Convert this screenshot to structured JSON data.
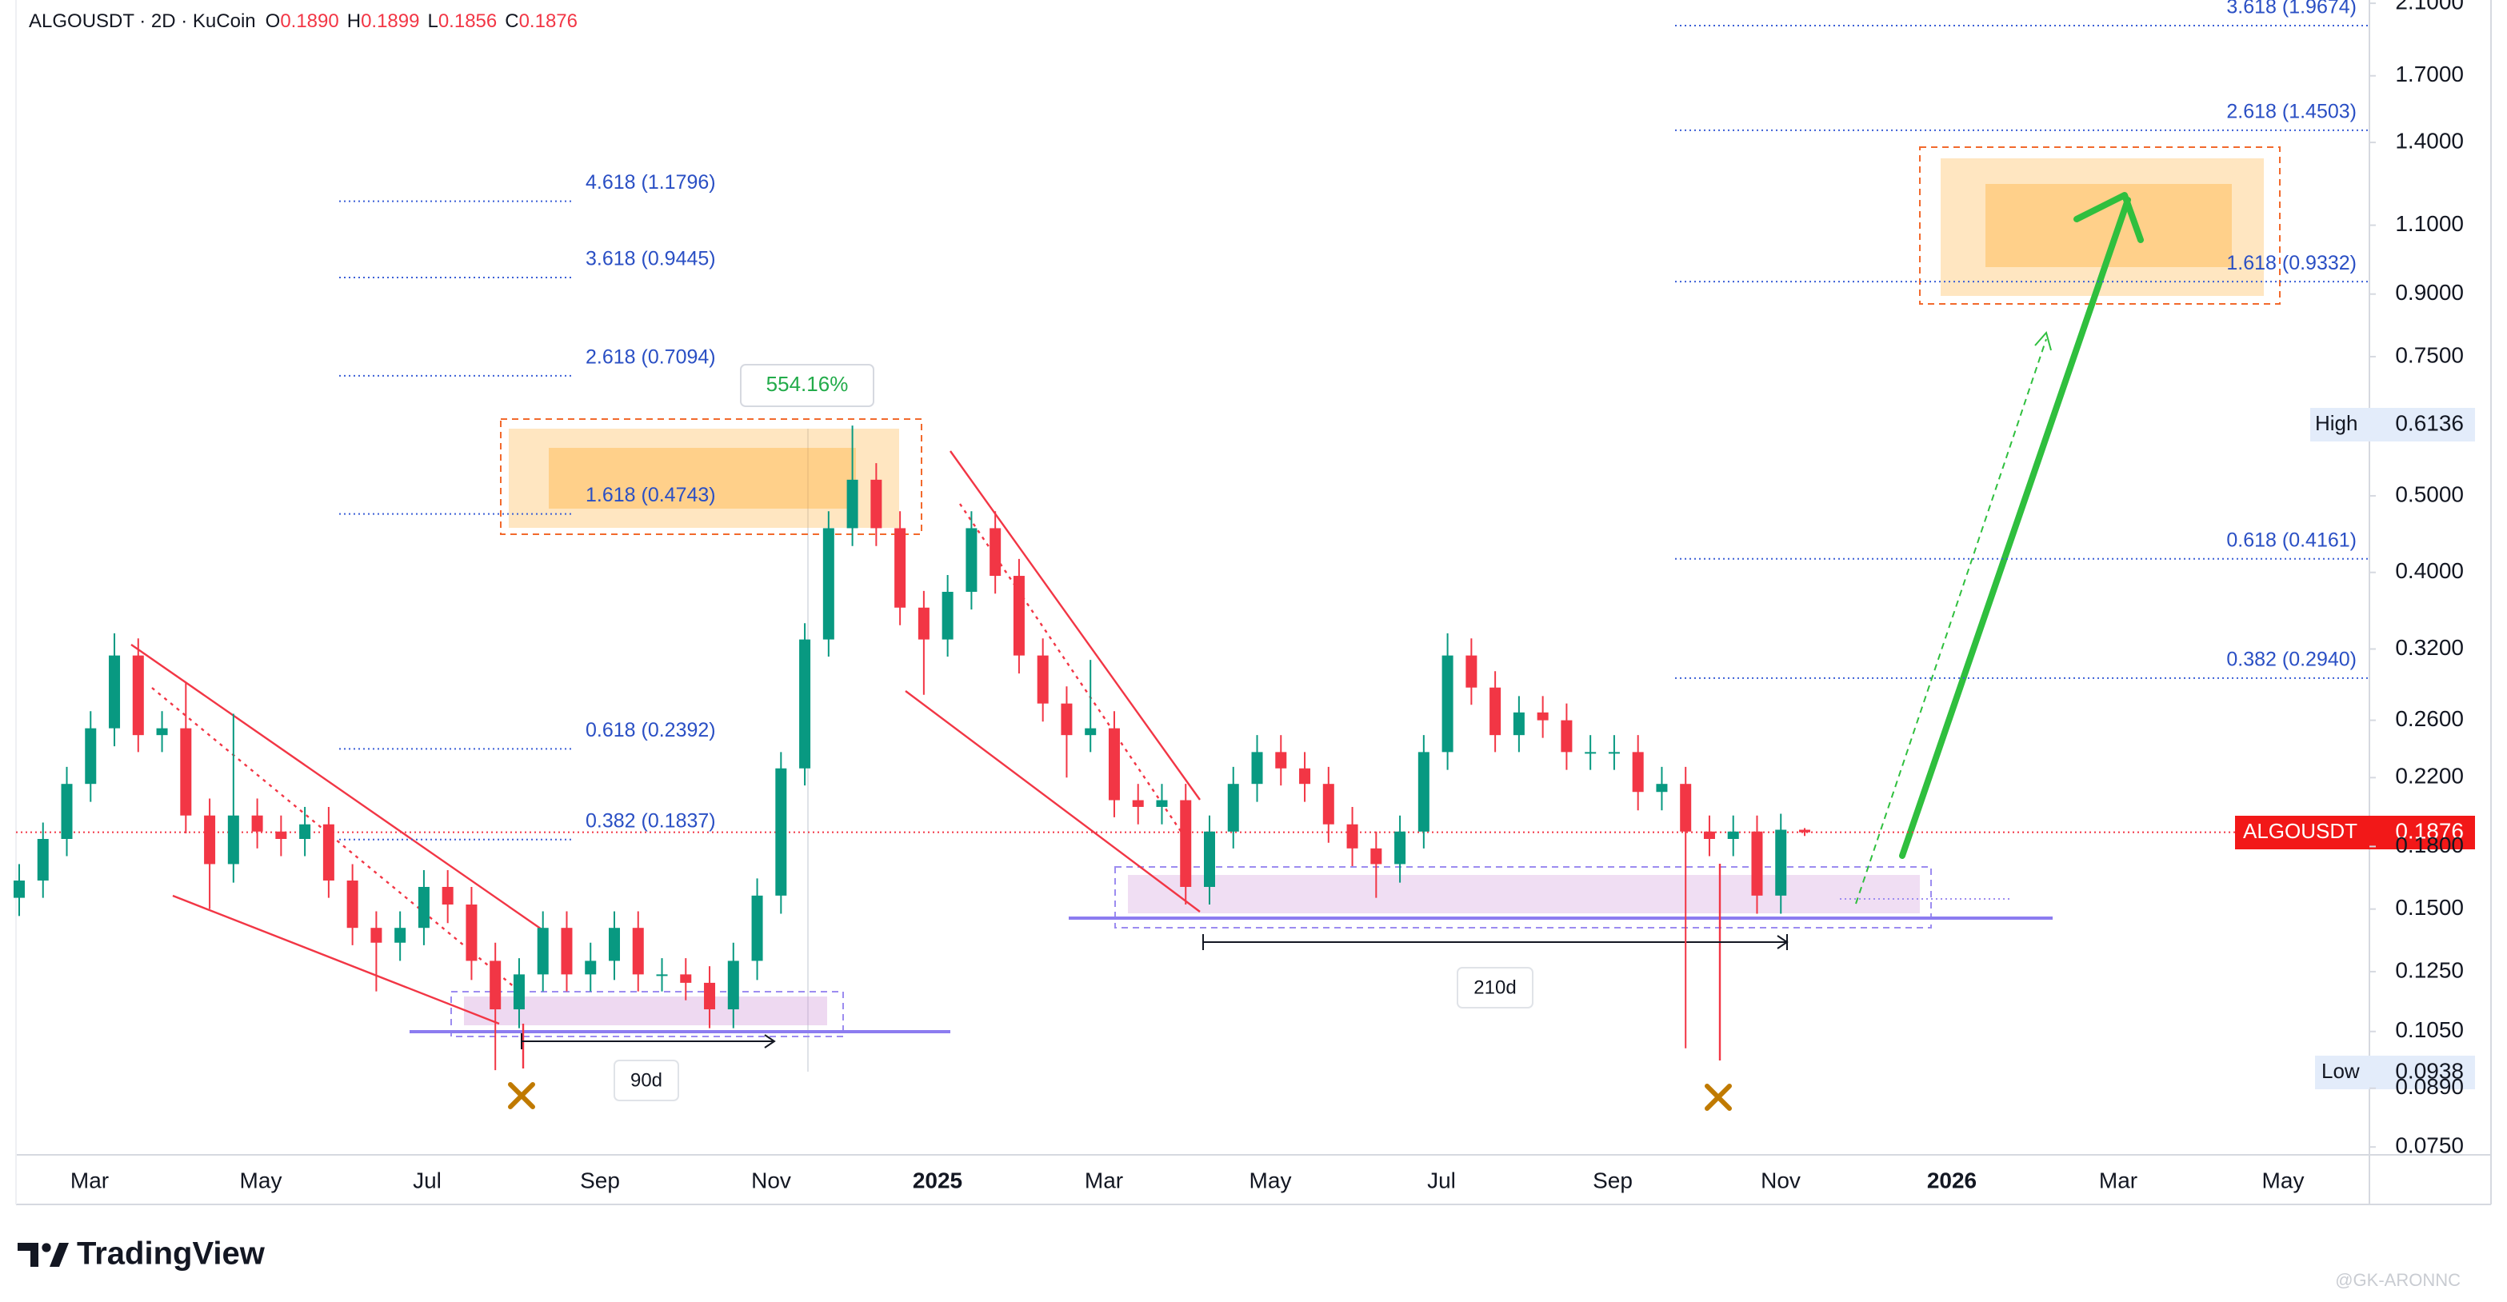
{
  "chart_data": {
    "type": "candlestick",
    "header": {
      "symbol": "ALGOUSDT · 2D · KuCoin",
      "fields": [
        {
          "key": "O",
          "value": "0.1890"
        },
        {
          "key": "H",
          "value": "0.1899"
        },
        {
          "key": "L",
          "value": "0.1856"
        },
        {
          "key": "C",
          "value": "0.1876"
        }
      ]
    },
    "symbol": "ALGOUSDT",
    "high_label": "High",
    "low_label": "Low",
    "up_color": "#089981",
    "down_color": "#f23645",
    "log_scale": true,
    "grid": false,
    "open": [
      0.155,
      0.163,
      0.184,
      0.216,
      0.254,
      0.314,
      0.249,
      0.254,
      0.197,
      0.171,
      0.197,
      0.188,
      0.184,
      0.192,
      0.163,
      0.142,
      0.136,
      0.142,
      0.16,
      0.152,
      0.129,
      0.112,
      0.124,
      0.142,
      0.124,
      0.129,
      0.142,
      0.124,
      0.124,
      0.121,
      0.112,
      0.129,
      0.156,
      0.226,
      0.329,
      0.455,
      0.524,
      0.455,
      0.361,
      0.329,
      0.378,
      0.455,
      0.396,
      0.314,
      0.273,
      0.249,
      0.254,
      0.206,
      0.202,
      0.206,
      0.16,
      0.188,
      0.216,
      0.237,
      0.226,
      0.216,
      0.192,
      0.179,
      0.171,
      0.188,
      0.237,
      0.314,
      0.286,
      0.249,
      0.266,
      0.26,
      0.237,
      0.237,
      0.237,
      0.211,
      0.216,
      0.188,
      0.184,
      0.188,
      0.156,
      0.189
    ],
    "high": [
      0.171,
      0.193,
      0.227,
      0.267,
      0.335,
      0.33,
      0.267,
      0.29,
      0.207,
      0.265,
      0.207,
      0.197,
      0.202,
      0.202,
      0.171,
      0.149,
      0.149,
      0.168,
      0.168,
      0.16,
      0.136,
      0.13,
      0.149,
      0.149,
      0.136,
      0.149,
      0.149,
      0.13,
      0.13,
      0.127,
      0.136,
      0.164,
      0.237,
      0.345,
      0.478,
      0.6136,
      0.55,
      0.478,
      0.379,
      0.397,
      0.478,
      0.478,
      0.416,
      0.33,
      0.287,
      0.31,
      0.267,
      0.216,
      0.216,
      0.216,
      0.197,
      0.227,
      0.249,
      0.249,
      0.237,
      0.227,
      0.202,
      0.188,
      0.197,
      0.249,
      0.335,
      0.33,
      0.3,
      0.279,
      0.279,
      0.273,
      0.249,
      0.249,
      0.249,
      0.227,
      0.227,
      0.197,
      0.197,
      0.197,
      0.198,
      0.1899
    ],
    "low": [
      0.147,
      0.155,
      0.175,
      0.205,
      0.241,
      0.237,
      0.237,
      0.187,
      0.15,
      0.162,
      0.179,
      0.175,
      0.175,
      0.155,
      0.135,
      0.118,
      0.129,
      0.135,
      0.144,
      0.122,
      0.0938,
      0.106,
      0.118,
      0.118,
      0.118,
      0.122,
      0.118,
      0.118,
      0.115,
      0.106,
      0.106,
      0.122,
      0.148,
      0.215,
      0.313,
      0.432,
      0.432,
      0.343,
      0.28,
      0.313,
      0.359,
      0.376,
      0.298,
      0.259,
      0.22,
      0.237,
      0.196,
      0.192,
      0.192,
      0.152,
      0.152,
      0.179,
      0.205,
      0.215,
      0.205,
      0.182,
      0.17,
      0.155,
      0.162,
      0.179,
      0.225,
      0.272,
      0.237,
      0.237,
      0.247,
      0.225,
      0.225,
      0.225,
      0.2,
      0.2,
      0.1,
      0.175,
      0.175,
      0.148,
      0.148,
      0.1856
    ],
    "close": [
      0.163,
      0.184,
      0.216,
      0.254,
      0.314,
      0.249,
      0.254,
      0.197,
      0.171,
      0.197,
      0.188,
      0.184,
      0.192,
      0.163,
      0.142,
      0.136,
      0.142,
      0.16,
      0.152,
      0.129,
      0.112,
      0.124,
      0.142,
      0.124,
      0.129,
      0.142,
      0.124,
      0.124,
      0.121,
      0.112,
      0.129,
      0.156,
      0.226,
      0.329,
      0.455,
      0.524,
      0.455,
      0.361,
      0.329,
      0.378,
      0.455,
      0.396,
      0.314,
      0.273,
      0.249,
      0.254,
      0.206,
      0.202,
      0.206,
      0.16,
      0.188,
      0.216,
      0.237,
      0.226,
      0.216,
      0.192,
      0.179,
      0.171,
      0.188,
      0.237,
      0.314,
      0.286,
      0.249,
      0.266,
      0.26,
      0.237,
      0.237,
      0.237,
      0.211,
      0.216,
      0.188,
      0.184,
      0.188,
      0.156,
      0.189,
      0.1876
    ],
    "ylim": [
      0.0733,
      2.12
    ],
    "yticks": [
      {
        "value": 0.075,
        "label": "0.0750"
      },
      {
        "value": 0.089,
        "label": "0.0890"
      },
      {
        "value": 0.105,
        "label": "0.1050"
      },
      {
        "value": 0.125,
        "label": "0.1250"
      },
      {
        "value": 0.15,
        "label": "0.1500"
      },
      {
        "value": 0.18,
        "label": "0.1800"
      },
      {
        "value": 0.22,
        "label": "0.2200"
      },
      {
        "value": 0.26,
        "label": "0.2600"
      },
      {
        "value": 0.32,
        "label": "0.3200"
      },
      {
        "value": 0.4,
        "label": "0.4000"
      },
      {
        "value": 0.5,
        "label": "0.5000"
      },
      {
        "value": 0.75,
        "label": "0.7500"
      },
      {
        "value": 0.9,
        "label": "0.9000"
      },
      {
        "value": 1.1,
        "label": "1.1000"
      },
      {
        "value": 1.4,
        "label": "1.4000"
      },
      {
        "value": 1.7,
        "label": "1.7000"
      },
      {
        "value": 2.1,
        "label": "2.1000"
      }
    ],
    "xtick_labels": [
      "Mar",
      "May",
      "Jul",
      "Sep",
      "Nov",
      "2025",
      "Mar",
      "May",
      "Jul",
      "Sep",
      "Nov",
      "2026",
      "Mar",
      "May"
    ],
    "fib_left": [
      {
        "value": 1.1796,
        "label": "4.618 (1.1796)"
      },
      {
        "value": 0.9445,
        "label": "3.618 (0.9445)"
      },
      {
        "value": 0.7094,
        "label": "2.618 (0.7094)"
      },
      {
        "value": 0.4743,
        "label": "1.618 (0.4743)"
      },
      {
        "value": 0.2392,
        "label": "0.618 (0.2392)"
      },
      {
        "value": 0.1837,
        "label": "0.382 (0.1837)"
      }
    ],
    "fib_right": [
      {
        "value": 1.9674,
        "label": "3.618 (1.9674)"
      },
      {
        "value": 1.4503,
        "label": "2.618 (1.4503)"
      },
      {
        "value": 0.9332,
        "label": "1.618 (0.9332)"
      },
      {
        "value": 0.4161,
        "label": "0.618 (0.4161)"
      },
      {
        "value": 0.294,
        "label": "0.382 (0.2940)"
      }
    ],
    "annotations": {
      "gain": "554.16%",
      "span_left": "90d",
      "span_right": "210d"
    },
    "brand": "TradingView",
    "watermark": "@GK-ARONNC"
  }
}
